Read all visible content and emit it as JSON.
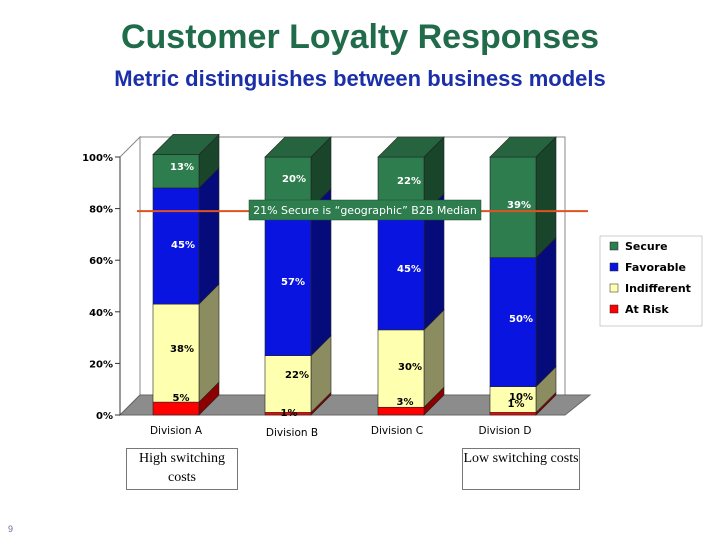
{
  "slide": {
    "title": "Customer Loyalty Responses",
    "subtitle": "Metric distinguishes between business models",
    "page_number": "9"
  },
  "notes": {
    "left": "High switching costs",
    "right": "Low switching costs"
  },
  "median_label": "21% Secure is “geographic” B2B Median",
  "colors": {
    "secure": "#2e7d4f",
    "favorable": "#0a14e0",
    "indifferent": "#ffffb0",
    "at_risk": "#ff0000",
    "median_line": "#e0521f",
    "title": "#1f6b4a",
    "subtitle": "#1a2fa8"
  },
  "chart_data": {
    "type": "bar",
    "stacked": true,
    "three_d": true,
    "categories": [
      "Division A",
      "Division B",
      "Division C",
      "Division D"
    ],
    "series": [
      {
        "name": "At Risk",
        "values": [
          5,
          1,
          3,
          1
        ],
        "labels": [
          "5%",
          "1%",
          "3%",
          "1%"
        ]
      },
      {
        "name": "Indifferent",
        "values": [
          38,
          22,
          30,
          10
        ],
        "labels": [
          "38%",
          "22%",
          "30%",
          "10%"
        ]
      },
      {
        "name": "Favorable",
        "values": [
          45,
          57,
          45,
          50
        ],
        "labels": [
          "45%",
          "57%",
          "45%",
          "50%"
        ]
      },
      {
        "name": "Secure",
        "values": [
          13,
          20,
          22,
          39
        ],
        "labels": [
          "13%",
          "20%",
          "22%",
          "39%"
        ]
      }
    ],
    "legend_order": [
      "Secure",
      "Favorable",
      "Indifferent",
      "At Risk"
    ],
    "legend_position": "right",
    "y_ticks": [
      "0%",
      "20%",
      "40%",
      "60%",
      "80%",
      "100%"
    ],
    "ylim": [
      0,
      100
    ],
    "reference_line": 79
  }
}
